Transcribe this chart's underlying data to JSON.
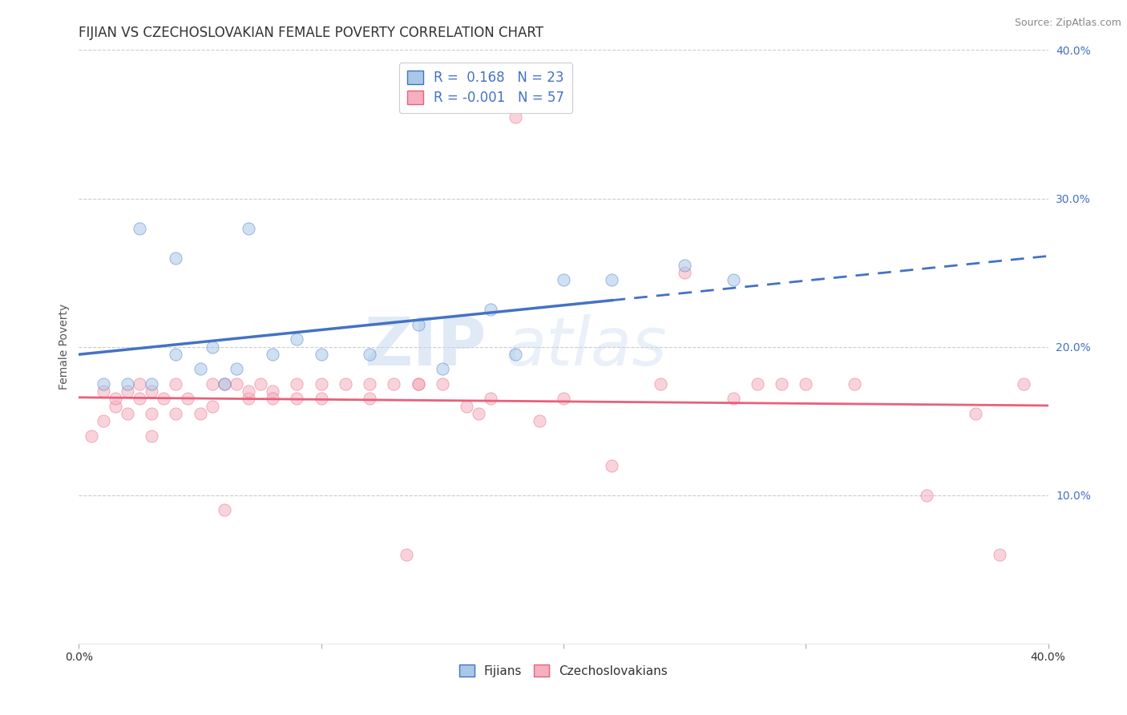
{
  "title": "FIJIAN VS CZECHOSLOVAKIAN FEMALE POVERTY CORRELATION CHART",
  "source_text": "Source: ZipAtlas.com",
  "ylabel": "Female Poverty",
  "xlim": [
    0,
    0.4
  ],
  "ylim": [
    0,
    0.4
  ],
  "xticks": [
    0.0,
    0.1,
    0.2,
    0.3,
    0.4
  ],
  "yticks": [
    0.1,
    0.2,
    0.3,
    0.4
  ],
  "xticklabels_bottom": [
    "0.0%",
    "",
    "",
    "",
    "40.0%"
  ],
  "yticklabels": [
    "10.0%",
    "20.0%",
    "30.0%",
    "40.0%"
  ],
  "fijians_color": "#a8c8e8",
  "czechoslovakians_color": "#f5afc0",
  "fijian_trend_color": "#4472c4",
  "czechoslovakian_trend_color": "#e8607a",
  "legend_fijian_label": "R =  0.168   N = 23",
  "legend_czechoslovakian_label": "R = -0.001   N = 57",
  "watermark_zip": "ZIP",
  "watermark_atlas": "atlas",
  "fijians_x": [
    0.01,
    0.02,
    0.025,
    0.03,
    0.04,
    0.04,
    0.05,
    0.055,
    0.06,
    0.065,
    0.07,
    0.08,
    0.09,
    0.1,
    0.12,
    0.14,
    0.15,
    0.17,
    0.18,
    0.2,
    0.22,
    0.25,
    0.27
  ],
  "fijians_y": [
    0.175,
    0.175,
    0.28,
    0.175,
    0.26,
    0.195,
    0.185,
    0.2,
    0.175,
    0.185,
    0.28,
    0.195,
    0.205,
    0.195,
    0.195,
    0.215,
    0.185,
    0.225,
    0.195,
    0.245,
    0.245,
    0.255,
    0.245
  ],
  "czechoslovakians_x": [
    0.005,
    0.01,
    0.01,
    0.015,
    0.015,
    0.02,
    0.02,
    0.025,
    0.025,
    0.03,
    0.03,
    0.03,
    0.035,
    0.04,
    0.04,
    0.045,
    0.05,
    0.055,
    0.055,
    0.06,
    0.06,
    0.065,
    0.07,
    0.07,
    0.075,
    0.08,
    0.08,
    0.09,
    0.09,
    0.1,
    0.1,
    0.11,
    0.12,
    0.12,
    0.13,
    0.135,
    0.14,
    0.14,
    0.15,
    0.16,
    0.165,
    0.17,
    0.18,
    0.19,
    0.2,
    0.22,
    0.24,
    0.25,
    0.27,
    0.28,
    0.29,
    0.3,
    0.32,
    0.35,
    0.37,
    0.38,
    0.39
  ],
  "czechoslovakians_y": [
    0.14,
    0.15,
    0.17,
    0.16,
    0.165,
    0.155,
    0.17,
    0.165,
    0.175,
    0.155,
    0.17,
    0.14,
    0.165,
    0.155,
    0.175,
    0.165,
    0.155,
    0.16,
    0.175,
    0.175,
    0.09,
    0.175,
    0.165,
    0.17,
    0.175,
    0.17,
    0.165,
    0.165,
    0.175,
    0.165,
    0.175,
    0.175,
    0.165,
    0.175,
    0.175,
    0.06,
    0.175,
    0.175,
    0.175,
    0.16,
    0.155,
    0.165,
    0.355,
    0.15,
    0.165,
    0.12,
    0.175,
    0.25,
    0.165,
    0.175,
    0.175,
    0.175,
    0.175,
    0.1,
    0.155,
    0.06,
    0.175
  ],
  "title_fontsize": 12,
  "axis_label_fontsize": 10,
  "tick_fontsize": 10,
  "legend_fontsize": 12,
  "marker_size": 120,
  "marker_alpha": 0.55,
  "background_color": "#ffffff",
  "grid_color": "#c0c0c0",
  "grid_linestyle": "--",
  "grid_alpha": 0.8,
  "trend_fijian_x_start": 0.0,
  "trend_fijian_x_end": 0.4,
  "trend_czech_x_start": 0.0,
  "trend_czech_x_end": 0.4
}
